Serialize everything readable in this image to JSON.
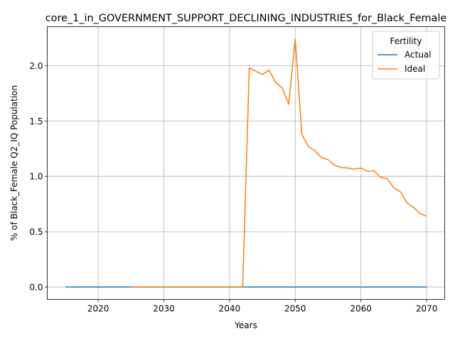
{
  "chart_data": {
    "type": "line",
    "title": "core_1_in_GOVERNMENT_SUPPORT_DECLINING_INDUSTRIES_for_Black_Female",
    "xlabel": "Years",
    "ylabel": "% of Black_Female Q2_IQ Population",
    "xlim": [
      2012.25,
      2072.75
    ],
    "ylim": [
      -0.112,
      2.352
    ],
    "xticks": [
      2020,
      2030,
      2040,
      2050,
      2060,
      2070
    ],
    "yticks": [
      0.0,
      0.5,
      1.0,
      1.5,
      2.0
    ],
    "grid": true,
    "legend": {
      "title": "Fertility",
      "placement": "top-right"
    },
    "series": [
      {
        "name": "Actual",
        "color": "#1f77b4",
        "x": [
          2015,
          2016,
          2017,
          2018,
          2019,
          2020,
          2021,
          2022,
          2023,
          2024,
          2025,
          2026,
          2027,
          2028,
          2029,
          2030,
          2031,
          2032,
          2033,
          2034,
          2035,
          2036,
          2037,
          2038,
          2039,
          2040,
          2041,
          2042,
          2043,
          2044,
          2045,
          2046,
          2047,
          2048,
          2049,
          2050,
          2051,
          2052,
          2053,
          2054,
          2055,
          2056,
          2057,
          2058,
          2059,
          2060,
          2061,
          2062,
          2063,
          2064,
          2065,
          2066,
          2067,
          2068,
          2069,
          2070
        ],
        "y": [
          0,
          0,
          0,
          0,
          0,
          0,
          0,
          0,
          0,
          0,
          0,
          0,
          0,
          0,
          0,
          0,
          0,
          0,
          0,
          0,
          0,
          0,
          0,
          0,
          0,
          0,
          0,
          0,
          0,
          0,
          0,
          0,
          0,
          0,
          0,
          0,
          0,
          0,
          0,
          0,
          0,
          0,
          0,
          0,
          0,
          0,
          0,
          0,
          0,
          0,
          0,
          0,
          0,
          0,
          0,
          0
        ]
      },
      {
        "name": "Ideal",
        "color": "#ff7f0e",
        "x": [
          2025,
          2026,
          2027,
          2028,
          2029,
          2030,
          2031,
          2032,
          2033,
          2034,
          2035,
          2036,
          2037,
          2038,
          2039,
          2040,
          2041,
          2042,
          2043,
          2044,
          2045,
          2046,
          2047,
          2048,
          2049,
          2050,
          2051,
          2052,
          2053,
          2054,
          2055,
          2056,
          2057,
          2058,
          2059,
          2060,
          2061,
          2062,
          2063,
          2064,
          2065,
          2066,
          2067,
          2068,
          2069,
          2070
        ],
        "y": [
          0,
          0,
          0,
          0,
          0,
          0,
          0,
          0,
          0,
          0,
          0,
          0,
          0,
          0,
          0,
          0,
          0,
          0,
          1.98,
          1.95,
          1.92,
          1.96,
          1.85,
          1.8,
          1.65,
          2.24,
          1.38,
          1.27,
          1.23,
          1.17,
          1.15,
          1.1,
          1.08,
          1.075,
          1.065,
          1.075,
          1.045,
          1.05,
          0.99,
          0.98,
          0.895,
          0.86,
          0.76,
          0.72,
          0.665,
          0.64
        ]
      }
    ]
  }
}
